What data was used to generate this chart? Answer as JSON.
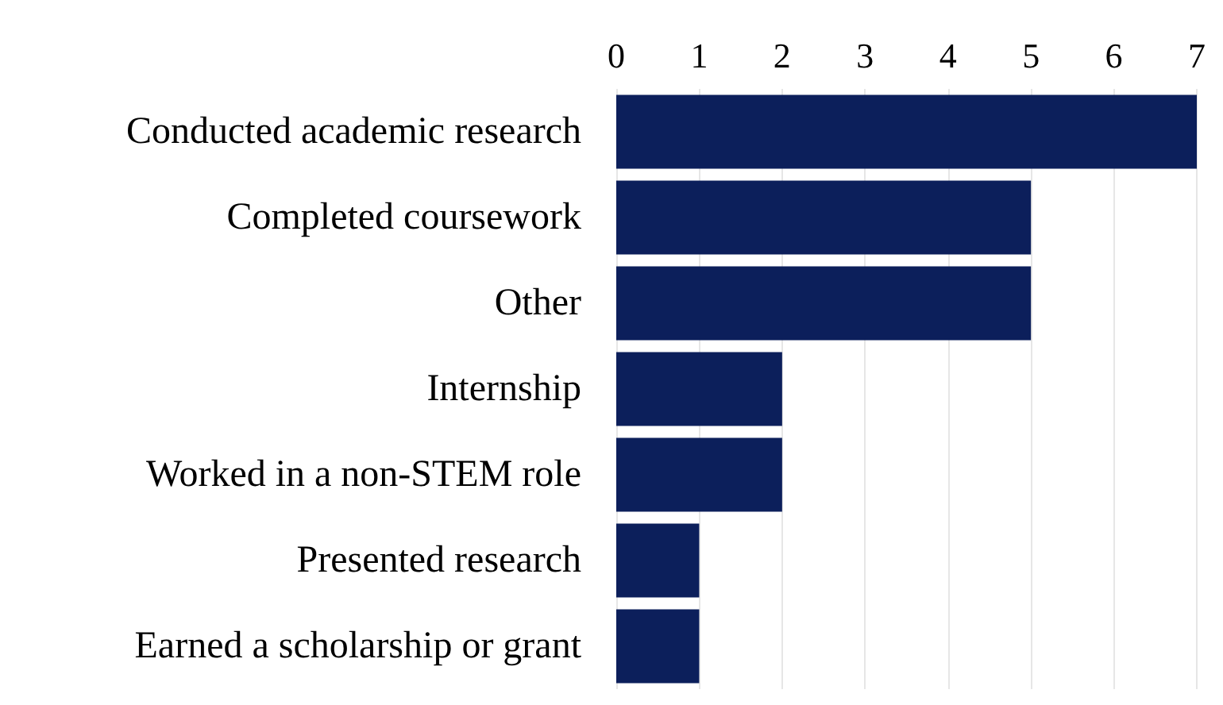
{
  "chart_data": {
    "type": "bar",
    "orientation": "horizontal",
    "categories": [
      "Conducted academic research",
      "Completed coursework",
      "Other",
      "Internship",
      "Worked in a non-STEM role",
      "Presented research",
      "Earned a scholarship or grant"
    ],
    "values": [
      7,
      5,
      5,
      2,
      2,
      1,
      1
    ],
    "color": "#0c1f5b",
    "xlim": [
      0,
      7
    ],
    "xticks": [
      0,
      1,
      2,
      3,
      4,
      5,
      6,
      7
    ],
    "grid": "x"
  }
}
